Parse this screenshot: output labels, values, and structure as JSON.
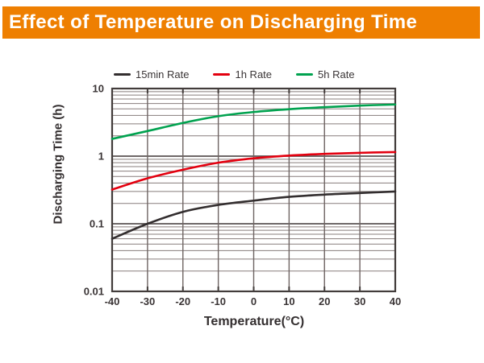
{
  "header": {
    "title": "Effect of Temperature on Discharging Time",
    "bg_color": "#EE7F01",
    "text_color": "#FFFFFF"
  },
  "chart_data": {
    "type": "line",
    "title": "Effect of Temperature on Discharging Time",
    "xlabel": "Temperature(°C)",
    "ylabel": "Discharging Time (h)",
    "x_scale": "linear",
    "y_scale": "log",
    "xlim": [
      -40,
      40
    ],
    "ylim": [
      0.01,
      10
    ],
    "x_ticks": [
      -40,
      -30,
      -20,
      -10,
      0,
      10,
      20,
      30,
      40
    ],
    "x_tick_labels": [
      "-40",
      "-30",
      "-20",
      "-10",
      "0",
      "10",
      "20",
      "30",
      "40"
    ],
    "y_ticks": [
      10,
      1,
      0.1,
      0.01
    ],
    "y_tick_labels": [
      "10",
      "1",
      "0.1",
      "0.01"
    ],
    "grid": {
      "log_minor_lines": true,
      "minor_color": "#877d7b",
      "vertical_color": "#6e6463",
      "major_color": "#5a5352",
      "border_color": "#423c3b"
    },
    "legend_position": "top",
    "series": [
      {
        "name": "15min Rate",
        "color": "#332e2f",
        "x": [
          -40,
          -30,
          -20,
          -10,
          0,
          10,
          20,
          30,
          40
        ],
        "y": [
          0.06,
          0.1,
          0.15,
          0.19,
          0.22,
          0.25,
          0.27,
          0.285,
          0.3
        ]
      },
      {
        "name": "1h Rate",
        "color": "#E3000F",
        "x": [
          -40,
          -30,
          -20,
          -10,
          0,
          10,
          20,
          30,
          40
        ],
        "y": [
          0.32,
          0.47,
          0.63,
          0.8,
          0.93,
          1.02,
          1.08,
          1.12,
          1.15
        ]
      },
      {
        "name": "5h Rate",
        "color": "#00A24F",
        "x": [
          -40,
          -30,
          -20,
          -10,
          0,
          10,
          20,
          30,
          40
        ],
        "y": [
          1.8,
          2.35,
          3.1,
          3.9,
          4.5,
          4.95,
          5.3,
          5.6,
          5.8
        ]
      }
    ]
  }
}
